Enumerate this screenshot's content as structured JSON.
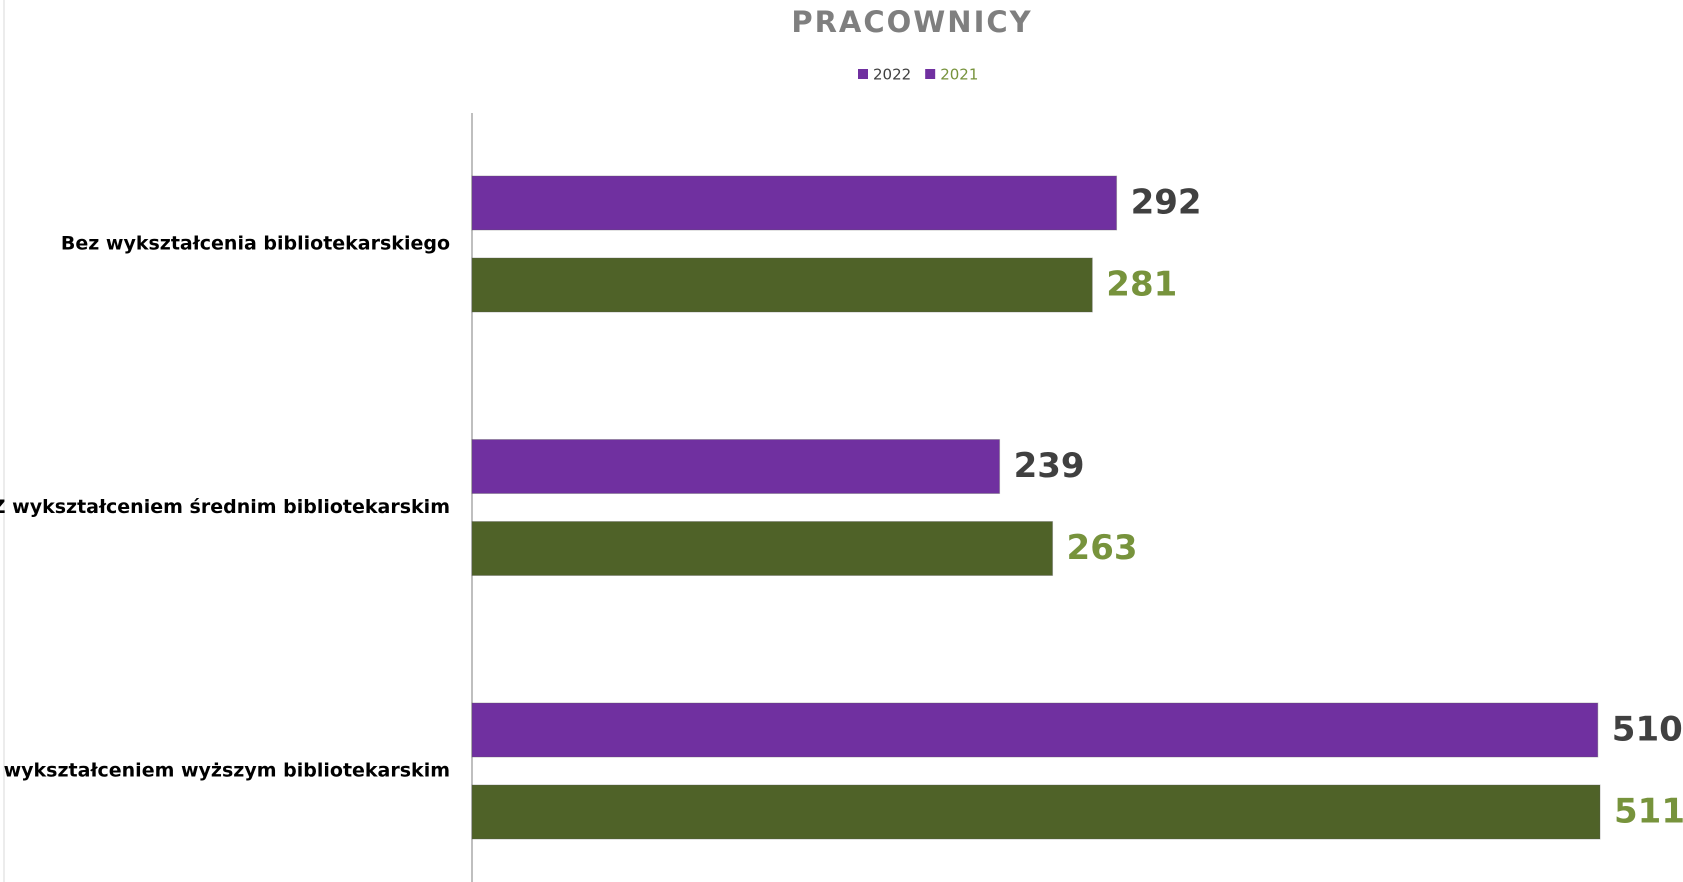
{
  "chart_data": {
    "type": "bar",
    "orientation": "horizontal",
    "title": "PRACOWNICY",
    "categories": [
      "Bez wykształcenia bibliotekarskiego",
      "Z wykształceniem średnim bibliotekarskim",
      "Z wykształceniem wyższym bibliotekarskim"
    ],
    "series": [
      {
        "name": "2022",
        "color": "#7030a0",
        "label_color": "#404040",
        "values": [
          292,
          239,
          510
        ]
      },
      {
        "name": "2021",
        "color": "#4f6228",
        "label_color": "#77933c",
        "values": [
          281,
          263,
          511
        ]
      }
    ],
    "xlim": [
      0,
      511
    ],
    "legend": "top",
    "grid": false
  }
}
